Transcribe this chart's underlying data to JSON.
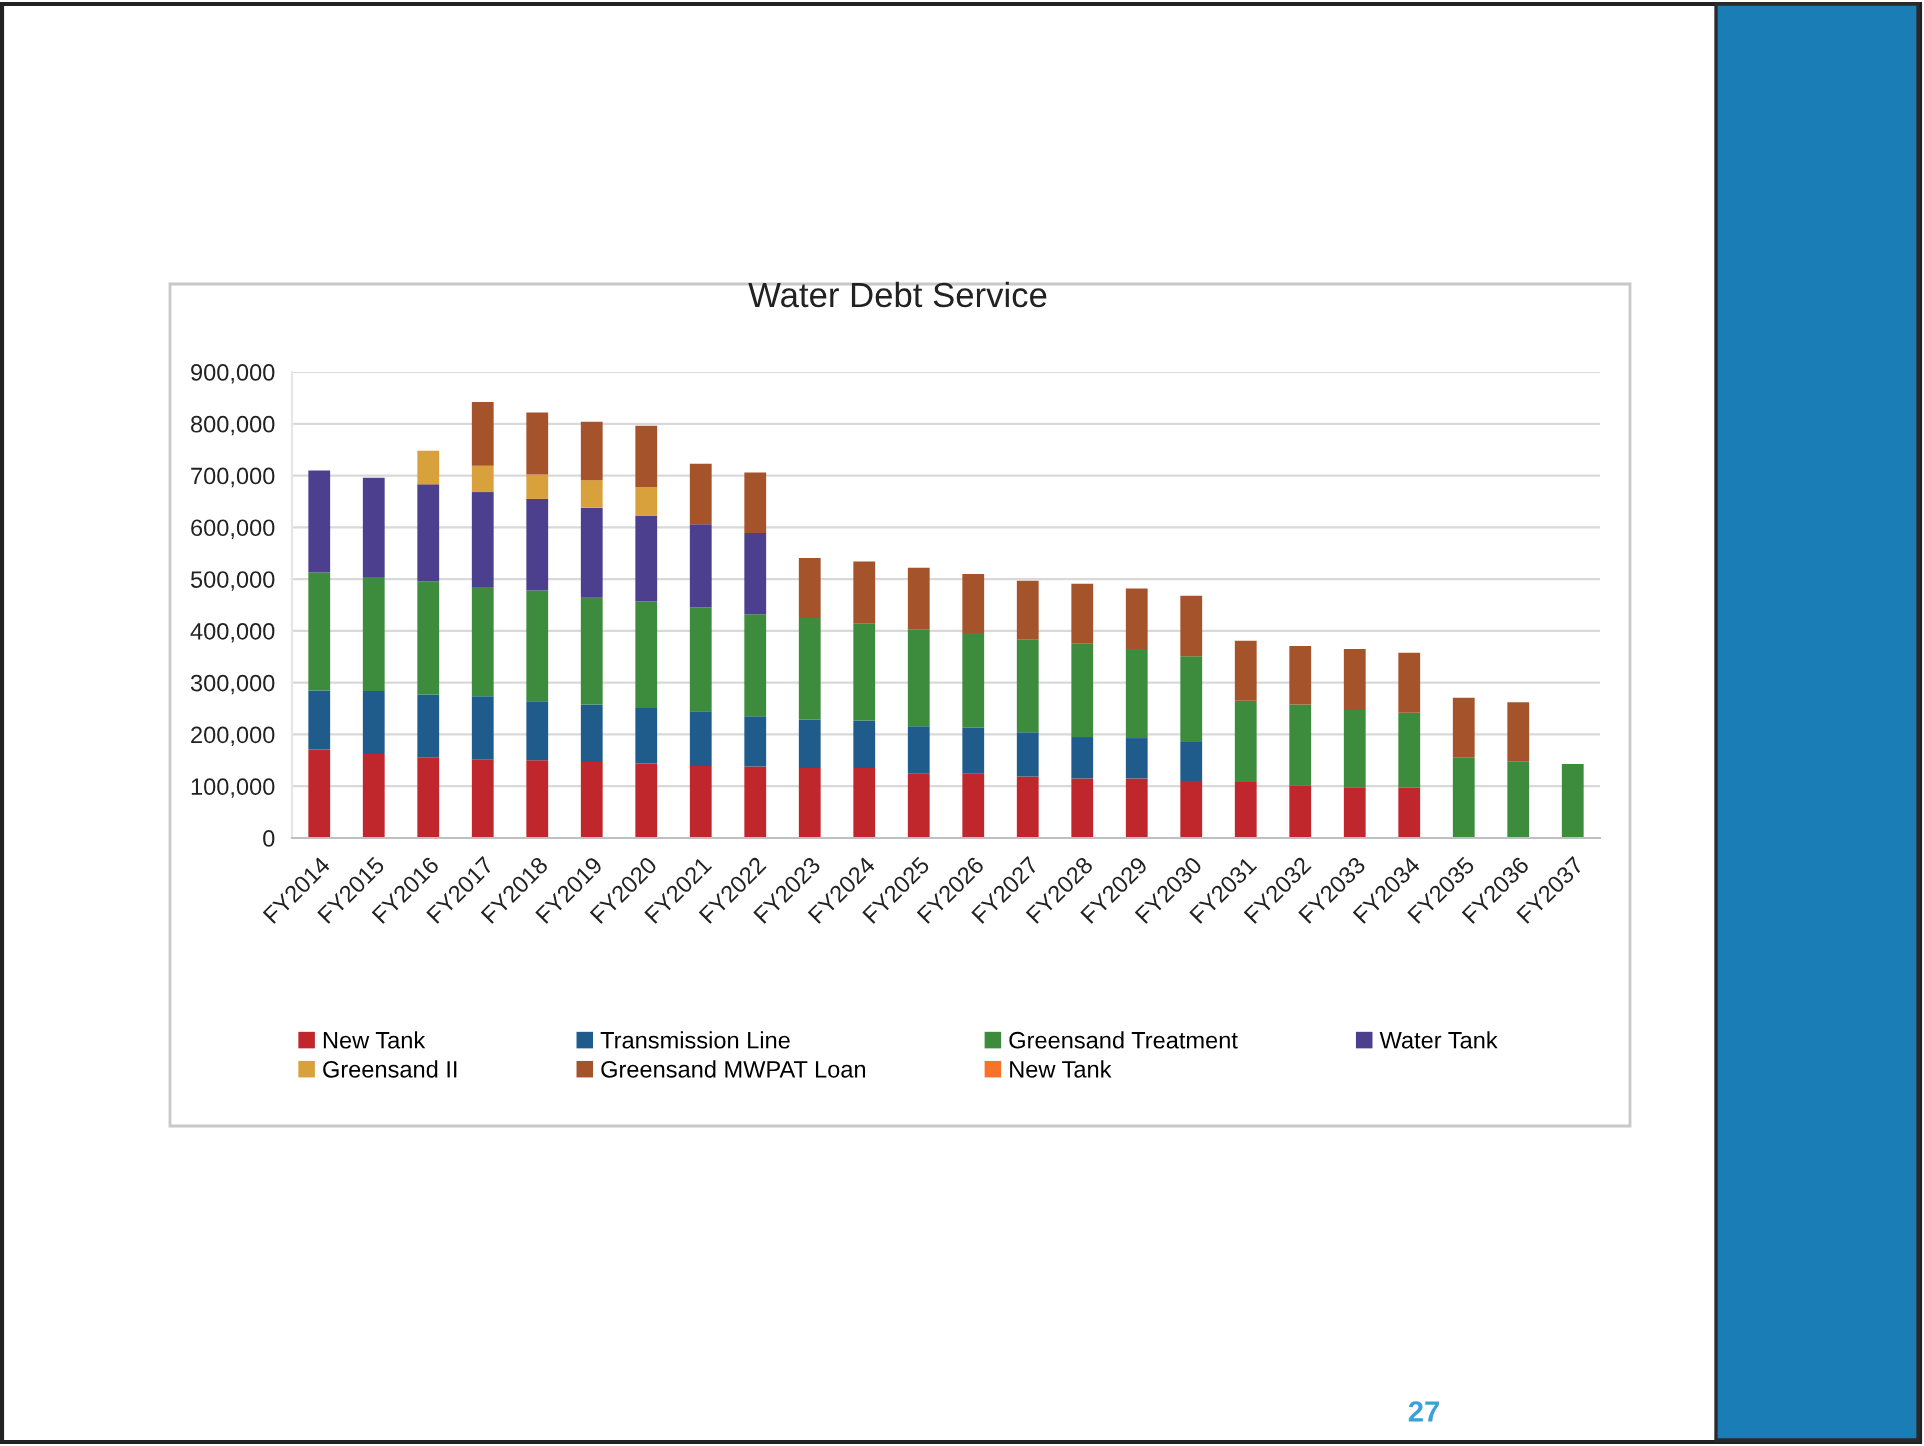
{
  "chart_data": {
    "type": "bar",
    "title": "Water Debt Service",
    "stacked": true,
    "categories": [
      "FY2014",
      "FY2015",
      "FY2016",
      "FY2017",
      "FY2018",
      "FY2019",
      "FY2020",
      "FY2021",
      "FY2022",
      "FY2023",
      "FY2024",
      "FY2025",
      "FY2026",
      "FY2027",
      "FY2028",
      "FY2029",
      "FY2030",
      "FY2031",
      "FY2032",
      "FY2033",
      "FY2034",
      "FY2035",
      "FY2036",
      "FY2037"
    ],
    "series": [
      {
        "name": "New Tank",
        "color": "#c0272d",
        "values": [
          171000,
          162000,
          156000,
          152000,
          150000,
          147000,
          144000,
          139000,
          138000,
          135000,
          135000,
          124000,
          124000,
          119000,
          115000,
          115000,
          110000,
          108000,
          102000,
          98000,
          97000,
          null,
          null,
          null
        ]
      },
      {
        "name": "Transmission Line",
        "color": "#1f5c8b",
        "values": [
          114000,
          122000,
          121000,
          122000,
          114000,
          111000,
          107000,
          106000,
          97000,
          94000,
          92000,
          92000,
          89000,
          85000,
          80000,
          78000,
          77000,
          null,
          null,
          null,
          null,
          null,
          null,
          null
        ]
      },
      {
        "name": "Greensand Treatment",
        "color": "#3d8b3d",
        "values": [
          228000,
          220000,
          219000,
          211000,
          214000,
          206000,
          206000,
          200000,
          197000,
          196000,
          187000,
          187000,
          183000,
          180000,
          180000,
          172000,
          164000,
          157000,
          156000,
          149000,
          145000,
          156000,
          148000,
          143000
        ]
      },
      {
        "name": "Water Tank",
        "color": "#4b3f8e",
        "values": [
          197000,
          192000,
          187000,
          183000,
          177000,
          174000,
          165000,
          161000,
          157000,
          null,
          null,
          null,
          null,
          null,
          null,
          null,
          null,
          null,
          null,
          null,
          null,
          null,
          null,
          null
        ]
      },
      {
        "name": "Greensand II",
        "color": "#d9a13c",
        "values": [
          null,
          null,
          65000,
          51000,
          47000,
          53000,
          56000,
          null,
          null,
          null,
          null,
          null,
          null,
          null,
          null,
          null,
          null,
          null,
          null,
          null,
          null,
          null,
          null,
          null
        ]
      },
      {
        "name": "Greensand MWPAT Loan",
        "color": "#a5532a",
        "values": [
          null,
          null,
          null,
          123000,
          120000,
          113000,
          118000,
          117000,
          117000,
          116000,
          120000,
          119000,
          114000,
          113000,
          116000,
          117000,
          117000,
          116000,
          113000,
          118000,
          116000,
          115000,
          114000,
          null
        ]
      },
      {
        "name": "New Tank",
        "color": "#f5742a",
        "values": [
          null,
          null,
          null,
          null,
          null,
          null,
          null,
          null,
          null,
          null,
          null,
          null,
          null,
          null,
          null,
          null,
          null,
          null,
          null,
          null,
          null,
          null,
          null,
          null
        ]
      }
    ],
    "ylim": [
      0,
      900000
    ],
    "yticks": [
      0,
      {
        "value": 100000,
        "label": "100,000"
      },
      {
        "value": 200000,
        "label": "200,000"
      },
      {
        "value": 300000,
        "label": "300,000"
      },
      {
        "value": 400000,
        "label": "400,000"
      },
      {
        "value": 500000,
        "label": "500,000"
      },
      {
        "value": 600000,
        "label": "600,000"
      },
      {
        "value": 700000,
        "label": "700,000"
      },
      {
        "value": 800000,
        "label": "800,000"
      },
      {
        "value": 900000,
        "label": "900,000"
      }
    ],
    "grid": "y",
    "legend": "bottom",
    "annotations": [
      "27"
    ]
  }
}
